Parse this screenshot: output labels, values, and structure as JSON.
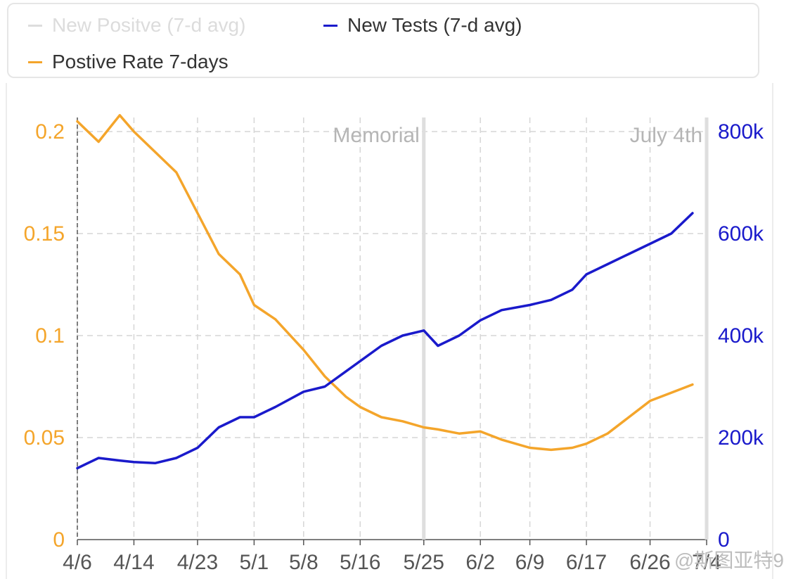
{
  "legend": [
    {
      "label": "New Positve (7-d avg)",
      "color": "#dddddd",
      "disabled": true
    },
    {
      "label": "New Tests (7-d avg)",
      "color": "#1a1acb",
      "disabled": false
    },
    {
      "label": "Postive Rate 7-days",
      "color": "#f4a52b",
      "disabled": false
    }
  ],
  "watermark": "@斯图亚特9",
  "chart_data": {
    "type": "line",
    "x": [
      "4/6",
      "4/9",
      "4/12",
      "4/14",
      "4/17",
      "4/20",
      "4/23",
      "4/26",
      "4/29",
      "5/1",
      "5/4",
      "5/8",
      "5/11",
      "5/14",
      "5/16",
      "5/19",
      "5/22",
      "5/25",
      "5/27",
      "5/30",
      "6/2",
      "6/5",
      "6/9",
      "6/12",
      "6/15",
      "6/17",
      "6/20",
      "6/23",
      "6/26",
      "6/29",
      "7/2"
    ],
    "xticks": [
      "4/6",
      "4/14",
      "4/23",
      "5/1",
      "5/8",
      "5/16",
      "5/25",
      "6/2",
      "6/9",
      "6/17",
      "6/26",
      "7/4"
    ],
    "series": [
      {
        "name": "Postive Rate 7-days",
        "axis": "left",
        "color": "#f4a52b",
        "values": [
          0.205,
          0.195,
          0.208,
          0.2,
          0.19,
          0.18,
          0.16,
          0.14,
          0.13,
          0.115,
          0.108,
          0.093,
          0.08,
          0.07,
          0.065,
          0.06,
          0.058,
          0.055,
          0.054,
          0.052,
          0.053,
          0.049,
          0.045,
          0.044,
          0.045,
          0.047,
          0.052,
          0.06,
          0.068,
          0.072,
          0.076
        ]
      },
      {
        "name": "New Tests (7-d avg)",
        "axis": "right",
        "color": "#1a1acb",
        "values": [
          140000,
          160000,
          155000,
          152000,
          150000,
          160000,
          180000,
          220000,
          240000,
          240000,
          260000,
          290000,
          300000,
          330000,
          350000,
          380000,
          400000,
          410000,
          380000,
          400000,
          430000,
          450000,
          460000,
          470000,
          490000,
          520000,
          540000,
          560000,
          580000,
          600000,
          640000
        ]
      }
    ],
    "y_left": {
      "ticks": [
        "0",
        "0.05",
        "0.1",
        "0.15",
        "0.2"
      ],
      "range": [
        0,
        0.2
      ]
    },
    "y_right": {
      "ticks": [
        "0",
        "200k",
        "400k",
        "600k",
        "800k"
      ],
      "range": [
        0,
        800000
      ]
    },
    "annotations": [
      {
        "label": "Memorial",
        "x": "5/25"
      },
      {
        "label": "July 4th",
        "x": "7/4"
      }
    ],
    "grid": true
  }
}
